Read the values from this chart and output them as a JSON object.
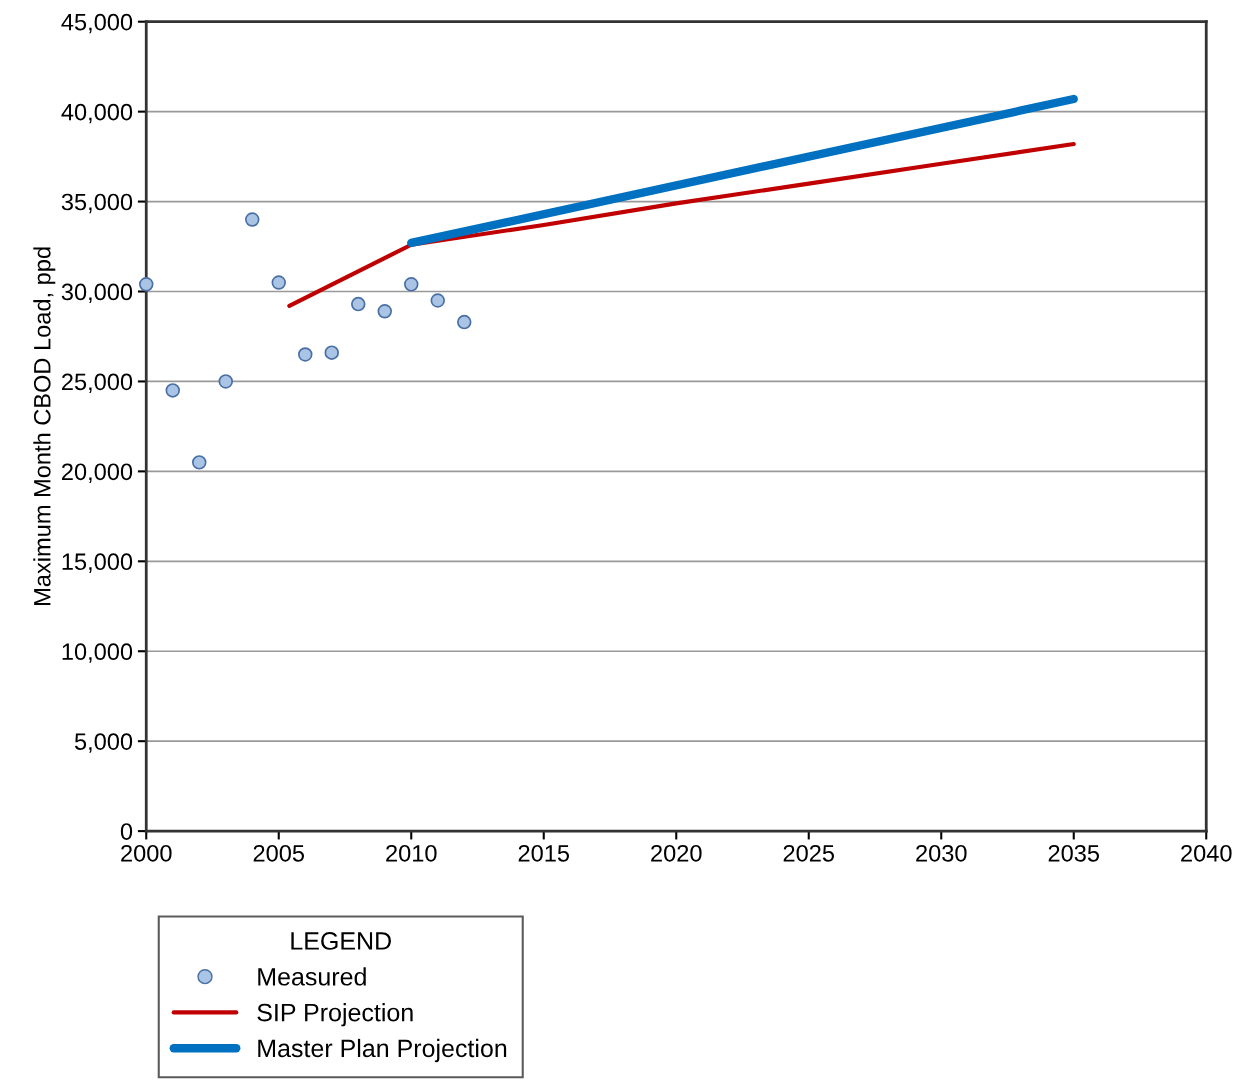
{
  "chart_data": {
    "type": "line",
    "ylabel": "Maximum Month CBOD Load, ppd",
    "legend_title": "LEGEND",
    "legend": "bottom",
    "grid": "y",
    "xlim": [
      2000,
      2040
    ],
    "xticks": [
      2000,
      2005,
      2010,
      2015,
      2020,
      2025,
      2030,
      2035,
      2040
    ],
    "ylim": [
      0,
      45000
    ],
    "yticks": [
      {
        "value": 0,
        "label": "0"
      },
      {
        "value": 5000,
        "label": "5,000"
      },
      {
        "value": 10000,
        "label": "10,000"
      },
      {
        "value": 15000,
        "label": "15,000"
      },
      {
        "value": 20000,
        "label": "20,000"
      },
      {
        "value": 25000,
        "label": "25,000"
      },
      {
        "value": 30000,
        "label": "30,000"
      },
      {
        "value": 35000,
        "label": "35,000"
      },
      {
        "value": 40000,
        "label": "40,000"
      },
      {
        "value": 45000,
        "label": "45,000"
      }
    ],
    "series": [
      {
        "name": "Measured",
        "type": "scatter",
        "marker": "circle",
        "color": "#a9c4e4",
        "x": [
          2000,
          2001,
          2002,
          2003,
          2004,
          2005,
          2006,
          2007,
          2008,
          2009,
          2010,
          2011,
          2012
        ],
        "values": [
          30400,
          24500,
          20500,
          25000,
          34000,
          30500,
          26500,
          26600,
          29300,
          28900,
          30400,
          29500,
          28300
        ]
      },
      {
        "name": "SIP Projection",
        "color": "#c00000",
        "x": [
          2005.4,
          2010,
          2015,
          2020,
          2025,
          2030,
          2035
        ],
        "values": [
          29200,
          32600,
          33700,
          34900,
          36000,
          37100,
          38200
        ]
      },
      {
        "name": "Master Plan Projection",
        "color": "#0070c0",
        "x": [
          2010,
          2035
        ],
        "values": [
          32700,
          40700
        ]
      }
    ]
  }
}
